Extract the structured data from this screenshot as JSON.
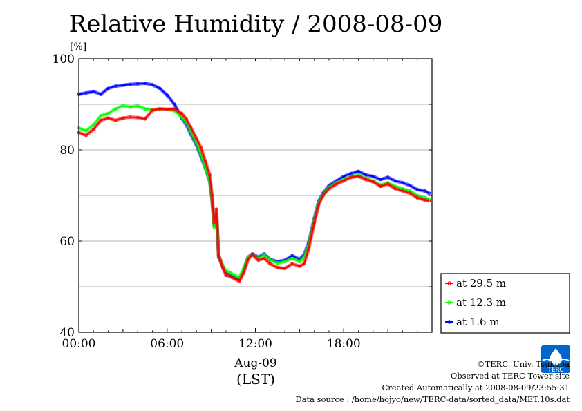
{
  "chart_data": {
    "type": "line",
    "title": "Relative Humidity / 2008-08-09",
    "ylabel": "[%]",
    "xlabel_date": "Aug-09",
    "xlabel_tz": "(LST)",
    "ylim": [
      40,
      100
    ],
    "xlim": [
      0,
      24
    ],
    "yticks": [
      "40",
      "60",
      "80",
      "100"
    ],
    "xticks": [
      "00:00",
      "06:00",
      "12:00",
      "18:00"
    ],
    "grid": true,
    "legend_position": "right",
    "series": [
      {
        "name": "at 29.5 m",
        "color": "#ff0000",
        "x": [
          0,
          0.5,
          1,
          1.5,
          2,
          2.5,
          3,
          3.5,
          4,
          4.5,
          5,
          5.5,
          6,
          6.5,
          7,
          7.3,
          7.6,
          8,
          8.3,
          8.6,
          8.9,
          9.05,
          9.2,
          9.35,
          9.5,
          9.8,
          10,
          10.3,
          10.6,
          10.9,
          11.2,
          11.5,
          11.8,
          12.2,
          12.6,
          13,
          13.5,
          14,
          14.5,
          15,
          15.3,
          15.6,
          16,
          16.3,
          16.6,
          17,
          17.5,
          18,
          18.5,
          19,
          19.5,
          20,
          20.5,
          21,
          21.5,
          22,
          22.5,
          23,
          23.5,
          23.8
        ],
        "y": [
          83.8,
          83.2,
          84.5,
          86.5,
          87,
          86.5,
          87,
          87.2,
          87.1,
          86.8,
          88.7,
          89,
          88.9,
          89,
          88,
          86.8,
          85,
          82.5,
          80.5,
          77.5,
          74.5,
          70,
          64,
          67,
          57,
          54,
          52.5,
          52.2,
          51.7,
          51.2,
          53,
          56,
          57,
          55.8,
          56.2,
          55,
          54.2,
          54,
          55,
          54.5,
          55,
          58,
          64,
          68,
          70,
          71.5,
          72.5,
          73.2,
          74,
          74.2,
          73.5,
          73,
          72,
          72.5,
          71.5,
          71,
          70.5,
          69.5,
          69,
          68.8
        ]
      },
      {
        "name": "at 12.3 m",
        "color": "#00ff00",
        "x": [
          0,
          0.5,
          1,
          1.5,
          2,
          2.5,
          3,
          3.5,
          4,
          4.5,
          5,
          5.5,
          6,
          6.5,
          7,
          7.3,
          7.6,
          8,
          8.3,
          8.6,
          8.9,
          9.05,
          9.2,
          9.35,
          9.5,
          9.8,
          10,
          10.3,
          10.6,
          10.9,
          11.2,
          11.5,
          11.8,
          12.2,
          12.6,
          13,
          13.5,
          14,
          14.5,
          15,
          15.3,
          15.6,
          16,
          16.3,
          16.6,
          17,
          17.5,
          18,
          18.5,
          19,
          19.5,
          20,
          20.5,
          21,
          21.5,
          22,
          22.5,
          23,
          23.5,
          23.8
        ],
        "y": [
          84.8,
          84.2,
          85.5,
          87.5,
          88,
          89,
          89.7,
          89.4,
          89.6,
          89,
          88.8,
          89,
          88.9,
          88.6,
          87.2,
          86,
          84,
          81.5,
          79,
          76,
          73,
          69,
          63,
          66,
          56.8,
          54.5,
          53.5,
          53,
          52.5,
          52,
          54,
          56.5,
          57,
          56.2,
          57,
          55.8,
          55.2,
          55.5,
          56.2,
          55.5,
          56.5,
          59,
          64.5,
          68.5,
          70.2,
          71.8,
          72.8,
          73.5,
          74.2,
          74.5,
          73.8,
          73.2,
          72.3,
          72.8,
          72,
          71.5,
          71,
          70,
          69.5,
          69.2
        ]
      },
      {
        "name": "at 1.6 m",
        "color": "#0000ff",
        "x": [
          0,
          0.5,
          1,
          1.5,
          2,
          2.5,
          3,
          3.5,
          4,
          4.5,
          5,
          5.5,
          6,
          6.5,
          7,
          7.3,
          7.6,
          8,
          8.3,
          8.6,
          8.9,
          9.05,
          9.2,
          9.35,
          9.5,
          9.8,
          10,
          10.3,
          10.6,
          10.9,
          11.2,
          11.5,
          11.8,
          12.2,
          12.6,
          13,
          13.5,
          14,
          14.5,
          15,
          15.3,
          15.6,
          16,
          16.3,
          16.6,
          17,
          17.5,
          18,
          18.5,
          19,
          19.5,
          20,
          20.5,
          21,
          21.5,
          22,
          22.5,
          23,
          23.5,
          23.8
        ],
        "y": [
          92.2,
          92.5,
          92.8,
          92.2,
          93.5,
          94,
          94.2,
          94.4,
          94.5,
          94.6,
          94.3,
          93.5,
          92,
          90,
          87,
          85.5,
          83.5,
          81,
          78.5,
          76,
          73,
          69,
          63.5,
          66,
          56.5,
          54.2,
          53,
          52.6,
          52,
          51.5,
          53.5,
          56.5,
          57.2,
          56.5,
          57.2,
          56,
          55.5,
          55.8,
          56.8,
          56,
          57,
          59.5,
          65,
          68.8,
          70.5,
          72.2,
          73.2,
          74.2,
          74.8,
          75.3,
          74.5,
          74.2,
          73.5,
          74,
          73.2,
          72.8,
          72.2,
          71.3,
          71,
          70.5
        ]
      }
    ]
  },
  "footer": {
    "copyright": "©TERC, Univ. Tsukuba",
    "site": "Observed at TERC Tower site",
    "created": "Created Automatically at 2008-08-09/23:55:31",
    "source": "Data source : /home/hojyo/new/TERC-data/sorted_data/MET.10s.dat"
  },
  "logo": {
    "text": "TERC",
    "color": "#0066cc"
  }
}
